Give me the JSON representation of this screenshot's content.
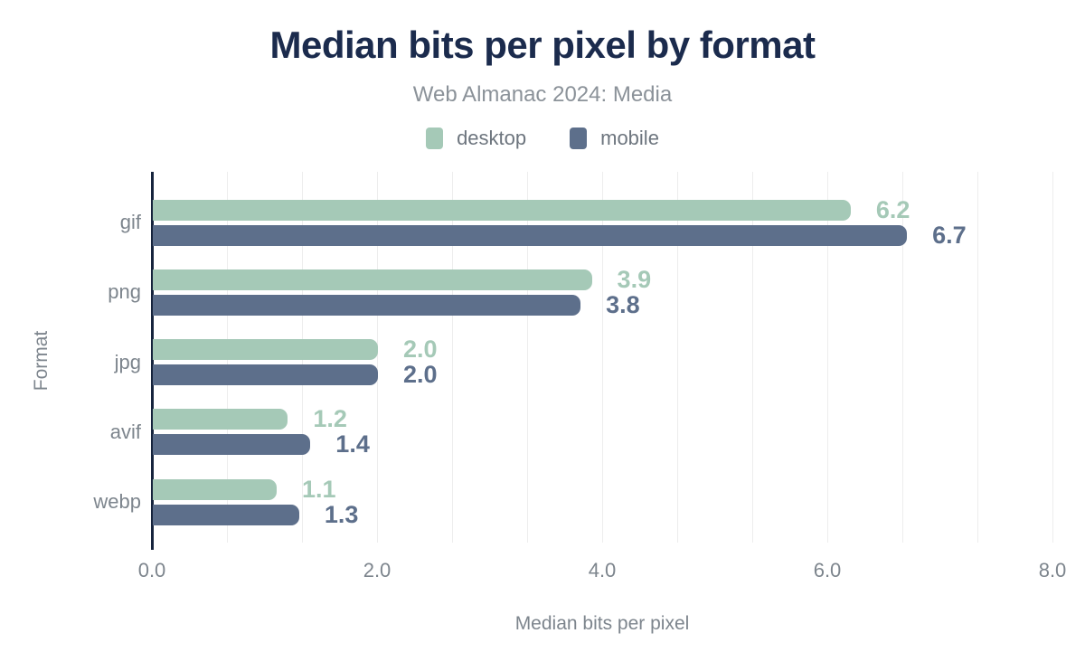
{
  "header": {
    "title": "Median bits per pixel by format",
    "subtitle": "Web Almanac 2024: Media"
  },
  "legend": {
    "items": [
      {
        "label": "desktop",
        "color": "#a5c9b7"
      },
      {
        "label": "mobile",
        "color": "#5d6f8b"
      }
    ]
  },
  "chart_data": {
    "type": "bar",
    "orientation": "horizontal",
    "title": "Median bits per pixel by format",
    "subtitle": "Web Almanac 2024: Media",
    "categories": [
      "gif",
      "png",
      "jpg",
      "avif",
      "webp"
    ],
    "series": [
      {
        "name": "desktop",
        "color": "#a5c9b7",
        "values": [
          6.2,
          3.9,
          2.0,
          1.2,
          1.1
        ]
      },
      {
        "name": "mobile",
        "color": "#5d6f8b",
        "values": [
          6.7,
          3.8,
          2.0,
          1.4,
          1.3
        ]
      }
    ],
    "xlabel": "Median bits per pixel",
    "ylabel": "Format",
    "xlim": [
      0,
      8
    ],
    "xticks": [
      0.0,
      2.0,
      4.0,
      6.0,
      8.0
    ],
    "tick_decimals": 1,
    "value_label_decimals": 1,
    "grid": {
      "vertical": true,
      "major_interval": 2,
      "minors_between_majors": 2
    },
    "legend_position": "top",
    "value_labels": true
  },
  "colors": {
    "background": "#ffffff",
    "title": "#1b2b4d",
    "subtitle": "#8b9299",
    "legend_label": "#6d757e",
    "axis_line": "#16243d",
    "gridline": "#ededed",
    "tick_label": "#7d858d",
    "axis_title": "#7d858d",
    "desktop": "#a5c9b7",
    "mobile": "#5d6f8b"
  }
}
